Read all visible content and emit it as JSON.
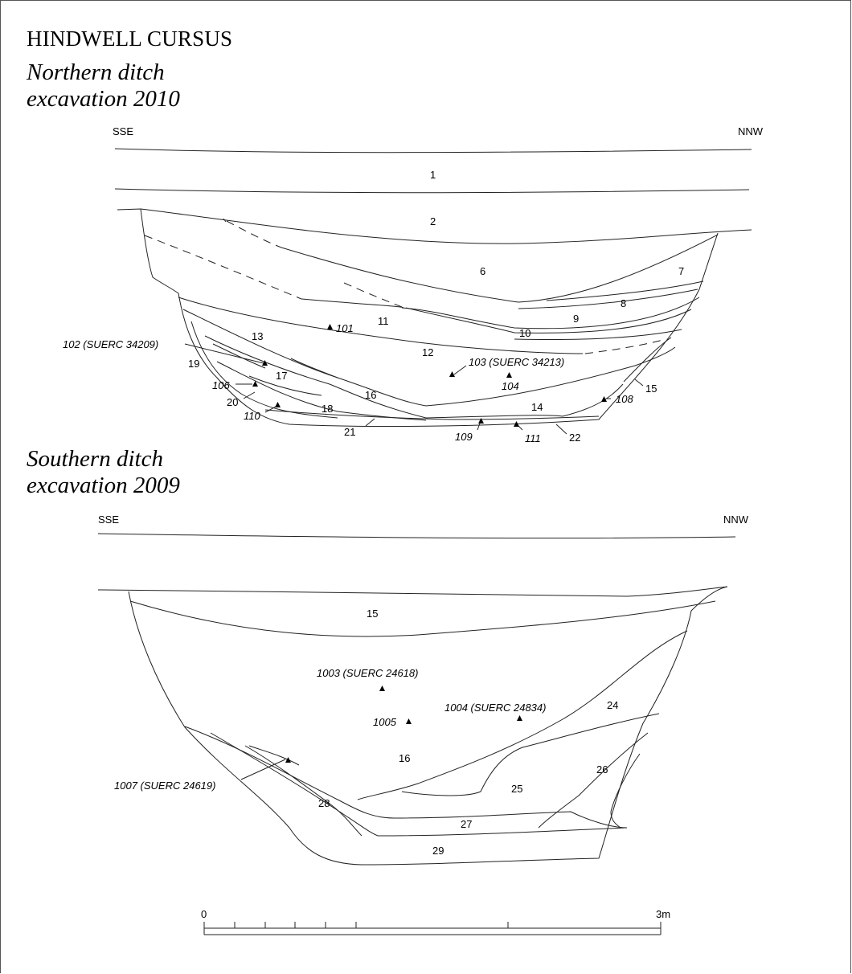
{
  "title": "HINDWELL CURSUS",
  "north": {
    "subtitle_line1": "Northern ditch",
    "subtitle_line2": "excavation 2010",
    "left_dir": "SSE",
    "right_dir": "NNW",
    "layers": [
      "1",
      "2",
      "6",
      "7",
      "8",
      "9",
      "10",
      "11",
      "12",
      "13",
      "14",
      "15",
      "16",
      "17",
      "18",
      "19",
      "20",
      "21",
      "22"
    ],
    "samples": [
      "101",
      "102 (SUERC 34209)",
      "103 (SUERC 34213)",
      "104",
      "106",
      "108",
      "109",
      "110",
      "111"
    ]
  },
  "south": {
    "subtitle_line1": "Southern ditch",
    "subtitle_line2": "excavation 2009",
    "left_dir": "SSE",
    "right_dir": "NNW",
    "layers": [
      "15",
      "16",
      "24",
      "25",
      "26",
      "27",
      "28",
      "29"
    ],
    "samples": [
      "1003 (SUERC 24618)",
      "1004 (SUERC 24834)",
      "1005",
      "1007 (SUERC 24619)"
    ]
  },
  "scale": {
    "start": "0",
    "end": "3m"
  }
}
